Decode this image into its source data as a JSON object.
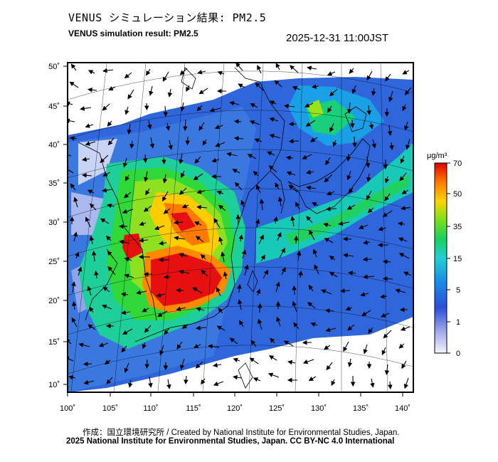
{
  "header": {
    "title_jp": "VENUS シミュレーション結果: PM2.5",
    "title_en": "VENUS simulation result: PM2.5",
    "timestamp": "2025-12-31 11:00JST"
  },
  "map": {
    "lon_ticks": [
      "100˚",
      "105˚",
      "110˚",
      "115˚",
      "120˚",
      "125˚",
      "130˚",
      "135˚",
      "140˚"
    ],
    "lat_ticks": [
      "50˚",
      "45˚",
      "40˚",
      "35˚",
      "30˚",
      "25˚",
      "20˚",
      "15˚",
      "10˚"
    ],
    "colors": {
      "land_bg": "#ffffff",
      "lines": "#000000"
    }
  },
  "colorbar": {
    "unit": "μg/m³",
    "labels": [
      "70",
      "50",
      "35",
      "15",
      "5",
      "1",
      "0"
    ],
    "colors": [
      "#ff0000",
      "#ff9900",
      "#ffd000",
      "#00e000",
      "#22d0e0",
      "#1a6adf",
      "#3040d0",
      "#f4f4ff"
    ]
  },
  "footer": {
    "credit": "作成：国立環境研究所 / Created by National Institute for Environmental Studies, Japan.",
    "license": "2025 National Institute for Environmental Studies, Japan. CC BY-NC 4.0 International"
  }
}
